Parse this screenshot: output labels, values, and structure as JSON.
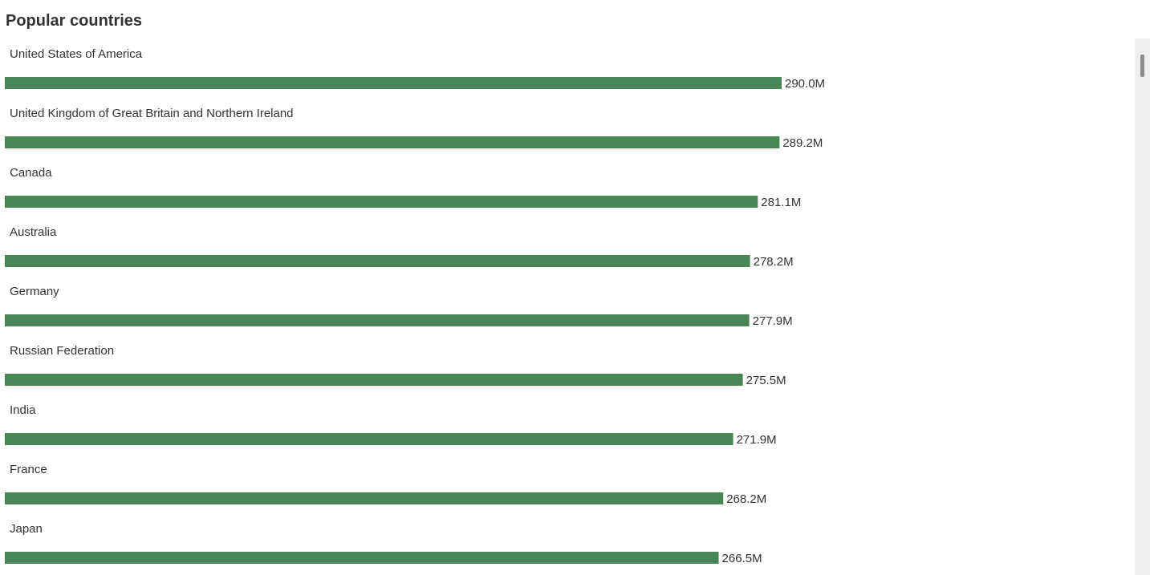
{
  "header": {
    "title": "Popular countries"
  },
  "chart_data": {
    "type": "bar",
    "orientation": "horizontal",
    "title": "Popular countries",
    "bar_color": "#4a8556",
    "categories": [
      "United States of America",
      "United Kingdom of Great Britain and Northern Ireland",
      "Canada",
      "Australia",
      "Germany",
      "Russian Federation",
      "India",
      "France",
      "Japan"
    ],
    "values": [
      290.0,
      289.2,
      281.1,
      278.2,
      277.9,
      275.5,
      271.9,
      268.2,
      266.5
    ],
    "value_labels": [
      "290.0M",
      "289.2M",
      "281.1M",
      "278.2M",
      "277.9M",
      "275.5M",
      "271.9M",
      "268.2M",
      "266.5M"
    ],
    "unit": "M",
    "xlim": [
      0,
      290.0
    ],
    "grid": false,
    "legend": "none"
  }
}
